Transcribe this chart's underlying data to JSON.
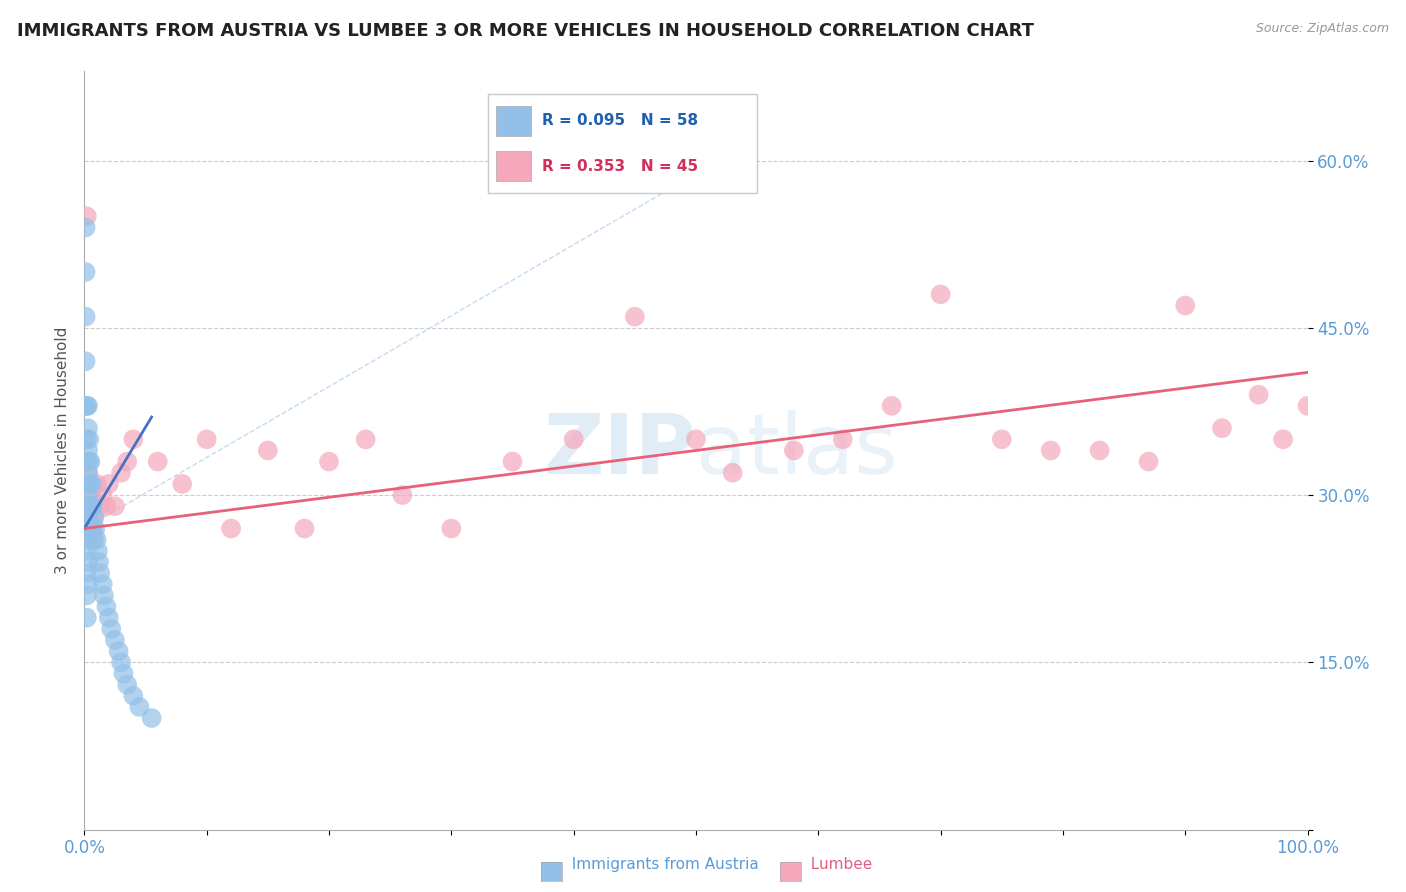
{
  "title": "IMMIGRANTS FROM AUSTRIA VS LUMBEE 3 OR MORE VEHICLES IN HOUSEHOLD CORRELATION CHART",
  "source_text": "Source: ZipAtlas.com",
  "ylabel": "3 or more Vehicles in Household",
  "xlim": [
    0.0,
    1.0
  ],
  "ylim": [
    0.0,
    0.68
  ],
  "y_ticks": [
    0.0,
    0.15,
    0.3,
    0.45,
    0.6
  ],
  "y_tick_labels": [
    "",
    "15.0%",
    "30.0%",
    "45.0%",
    "60.0%"
  ],
  "x_tick_labels": [
    "0.0%",
    "",
    "",
    "",
    "",
    "",
    "",
    "",
    "",
    "",
    "100.0%"
  ],
  "legend_R": [
    0.095,
    0.353
  ],
  "legend_N": [
    58,
    45
  ],
  "legend_labels": [
    "Immigrants from Austria",
    "Lumbee"
  ],
  "blue_color": "#92C0E8",
  "pink_color": "#F5A8BB",
  "blue_line_color": "#4472C4",
  "pink_line_color": "#E8607A",
  "diag_line_color": "#A8C8E8",
  "watermark": "ZIPatlas",
  "blue_x": [
    0.001,
    0.001,
    0.001,
    0.001,
    0.001,
    0.002,
    0.002,
    0.002,
    0.002,
    0.002,
    0.002,
    0.002,
    0.002,
    0.002,
    0.002,
    0.003,
    0.003,
    0.003,
    0.003,
    0.003,
    0.003,
    0.003,
    0.003,
    0.003,
    0.004,
    0.004,
    0.004,
    0.004,
    0.004,
    0.005,
    0.005,
    0.005,
    0.005,
    0.006,
    0.006,
    0.006,
    0.007,
    0.007,
    0.008,
    0.008,
    0.009,
    0.01,
    0.011,
    0.012,
    0.013,
    0.015,
    0.016,
    0.018,
    0.02,
    0.022,
    0.025,
    0.028,
    0.03,
    0.032,
    0.035,
    0.04,
    0.045,
    0.055
  ],
  "blue_y": [
    0.54,
    0.5,
    0.46,
    0.42,
    0.38,
    0.38,
    0.35,
    0.33,
    0.31,
    0.29,
    0.27,
    0.25,
    0.23,
    0.21,
    0.19,
    0.38,
    0.36,
    0.34,
    0.32,
    0.3,
    0.28,
    0.26,
    0.24,
    0.22,
    0.35,
    0.33,
    0.31,
    0.29,
    0.27,
    0.33,
    0.31,
    0.29,
    0.27,
    0.31,
    0.29,
    0.27,
    0.29,
    0.27,
    0.28,
    0.26,
    0.27,
    0.26,
    0.25,
    0.24,
    0.23,
    0.22,
    0.21,
    0.2,
    0.19,
    0.18,
    0.17,
    0.16,
    0.15,
    0.14,
    0.13,
    0.12,
    0.11,
    0.1
  ],
  "pink_x": [
    0.001,
    0.002,
    0.003,
    0.004,
    0.005,
    0.006,
    0.007,
    0.008,
    0.01,
    0.012,
    0.015,
    0.018,
    0.02,
    0.025,
    0.03,
    0.035,
    0.04,
    0.06,
    0.08,
    0.1,
    0.12,
    0.15,
    0.18,
    0.2,
    0.23,
    0.26,
    0.3,
    0.35,
    0.4,
    0.45,
    0.5,
    0.53,
    0.58,
    0.62,
    0.66,
    0.7,
    0.75,
    0.79,
    0.83,
    0.87,
    0.9,
    0.93,
    0.96,
    0.98,
    1.0
  ],
  "pink_y": [
    0.27,
    0.55,
    0.32,
    0.28,
    0.29,
    0.3,
    0.26,
    0.28,
    0.31,
    0.29,
    0.3,
    0.29,
    0.31,
    0.29,
    0.32,
    0.33,
    0.35,
    0.33,
    0.31,
    0.35,
    0.27,
    0.34,
    0.27,
    0.33,
    0.35,
    0.3,
    0.27,
    0.33,
    0.35,
    0.46,
    0.35,
    0.32,
    0.34,
    0.35,
    0.38,
    0.48,
    0.35,
    0.34,
    0.34,
    0.33,
    0.47,
    0.36,
    0.39,
    0.35,
    0.38
  ],
  "blue_trend": [
    0.0,
    0.055
  ],
  "blue_trend_y": [
    0.27,
    0.37
  ],
  "pink_trend": [
    0.0,
    1.0
  ],
  "pink_trend_y": [
    0.27,
    0.41
  ]
}
